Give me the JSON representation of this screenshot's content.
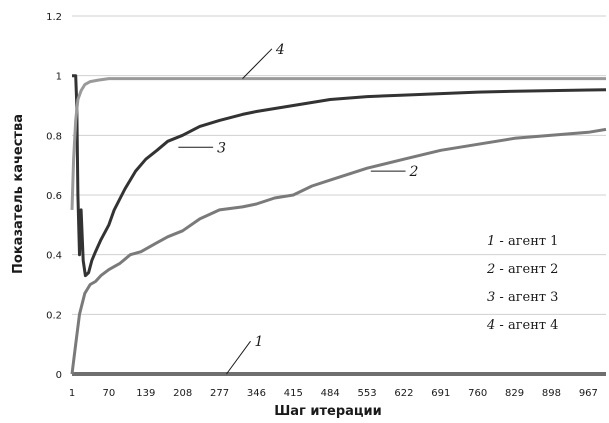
{
  "chart_data": {
    "type": "line",
    "xlabel": "Шаг итерации",
    "ylabel": "Показатель качества",
    "xlim": [
      1,
      1000
    ],
    "ylim": [
      0,
      1.2
    ],
    "x_ticks": [
      "1",
      "70",
      "139",
      "208",
      "277",
      "346",
      "415",
      "484",
      "553",
      "622",
      "691",
      "760",
      "829",
      "898",
      "967"
    ],
    "y_ticks": [
      "0",
      "0.2",
      "0.4",
      "0.6",
      "0.8",
      "1",
      "1.2"
    ],
    "grid": "horizontal",
    "legend": [
      {
        "num": "1",
        "text": " - агент 1"
      },
      {
        "num": "2",
        "text": " - агент 2"
      },
      {
        "num": "3",
        "text": " - агент 3"
      },
      {
        "num": "4",
        "text": " - агент 4"
      }
    ],
    "series": [
      {
        "id": "1",
        "color": "#6f6f6f",
        "points": [
          [
            1,
            0
          ],
          [
            1000,
            0
          ]
        ]
      },
      {
        "id": "2",
        "color": "#7a7a7a",
        "points": [
          [
            1,
            0
          ],
          [
            8,
            0.1
          ],
          [
            15,
            0.2
          ],
          [
            25,
            0.27
          ],
          [
            35,
            0.3
          ],
          [
            45,
            0.31
          ],
          [
            55,
            0.33
          ],
          [
            70,
            0.35
          ],
          [
            90,
            0.37
          ],
          [
            110,
            0.4
          ],
          [
            130,
            0.41
          ],
          [
            160,
            0.44
          ],
          [
            180,
            0.46
          ],
          [
            208,
            0.48
          ],
          [
            240,
            0.52
          ],
          [
            277,
            0.55
          ],
          [
            320,
            0.56
          ],
          [
            346,
            0.57
          ],
          [
            380,
            0.59
          ],
          [
            415,
            0.6
          ],
          [
            450,
            0.63
          ],
          [
            484,
            0.65
          ],
          [
            553,
            0.69
          ],
          [
            622,
            0.72
          ],
          [
            691,
            0.75
          ],
          [
            760,
            0.77
          ],
          [
            829,
            0.79
          ],
          [
            898,
            0.8
          ],
          [
            967,
            0.81
          ],
          [
            1000,
            0.82
          ]
        ]
      },
      {
        "id": "3",
        "color": "#333333",
        "points": [
          [
            1,
            1.0
          ],
          [
            8,
            1.0
          ],
          [
            10,
            0.9
          ],
          [
            12,
            0.6
          ],
          [
            15,
            0.4
          ],
          [
            18,
            0.55
          ],
          [
            22,
            0.38
          ],
          [
            26,
            0.33
          ],
          [
            32,
            0.34
          ],
          [
            38,
            0.38
          ],
          [
            45,
            0.41
          ],
          [
            55,
            0.45
          ],
          [
            70,
            0.5
          ],
          [
            80,
            0.55
          ],
          [
            100,
            0.62
          ],
          [
            120,
            0.68
          ],
          [
            139,
            0.72
          ],
          [
            160,
            0.75
          ],
          [
            180,
            0.78
          ],
          [
            208,
            0.8
          ],
          [
            240,
            0.83
          ],
          [
            277,
            0.85
          ],
          [
            320,
            0.87
          ],
          [
            346,
            0.88
          ],
          [
            415,
            0.9
          ],
          [
            484,
            0.92
          ],
          [
            553,
            0.93
          ],
          [
            622,
            0.935
          ],
          [
            691,
            0.94
          ],
          [
            760,
            0.945
          ],
          [
            829,
            0.948
          ],
          [
            898,
            0.95
          ],
          [
            967,
            0.952
          ],
          [
            1000,
            0.953
          ]
        ]
      },
      {
        "id": "4",
        "color": "#9a9a9a",
        "points": [
          [
            1,
            0.55
          ],
          [
            4,
            0.72
          ],
          [
            8,
            0.85
          ],
          [
            12,
            0.92
          ],
          [
            18,
            0.95
          ],
          [
            25,
            0.97
          ],
          [
            35,
            0.98
          ],
          [
            50,
            0.985
          ],
          [
            70,
            0.99
          ],
          [
            139,
            0.99
          ],
          [
            208,
            0.99
          ],
          [
            1000,
            0.99
          ]
        ]
      }
    ],
    "annotations": [
      {
        "label": "1",
        "series": "1",
        "x": 290,
        "y": 0,
        "tx": 335,
        "ty": 0.11
      },
      {
        "label": "2",
        "series": "2",
        "x": 560,
        "y": 0.68,
        "tx": 625,
        "ty": 0.68
      },
      {
        "label": "3",
        "series": "3",
        "x": 200,
        "y": 0.76,
        "tx": 265,
        "ty": 0.76
      },
      {
        "label": "4",
        "series": "4",
        "x": 320,
        "y": 0.99,
        "tx": 375,
        "ty": 1.09
      }
    ]
  }
}
